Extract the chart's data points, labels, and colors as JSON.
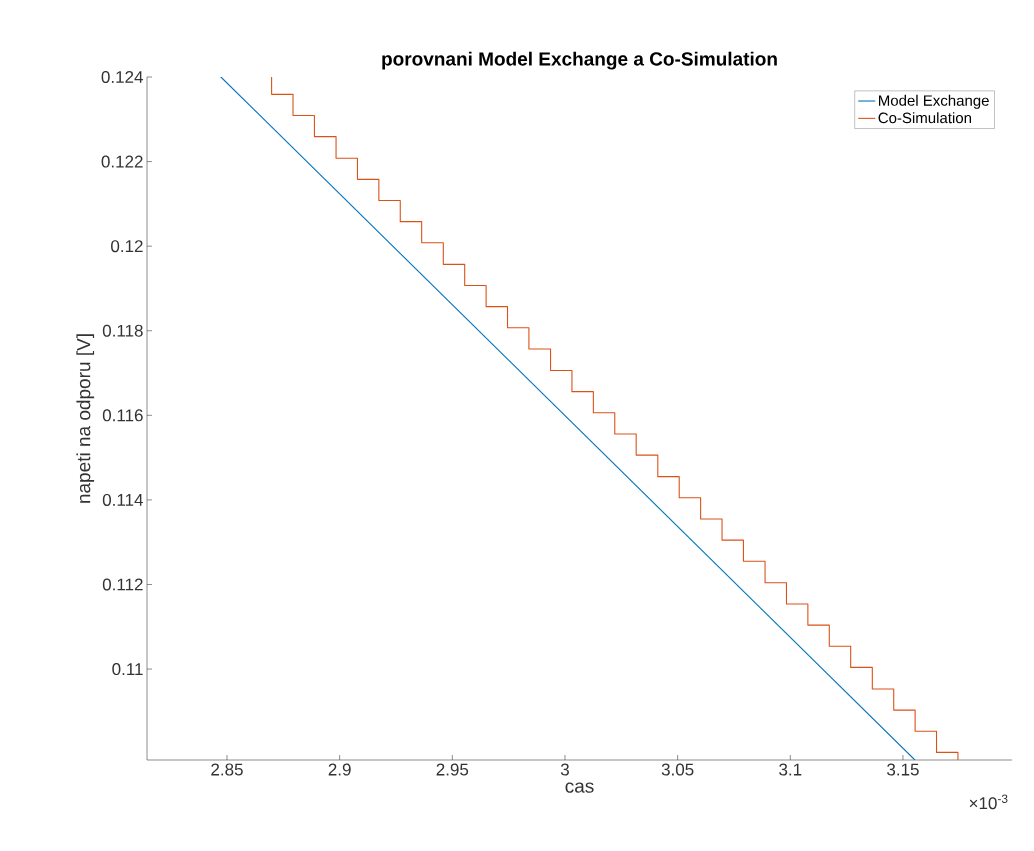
{
  "chart_data": {
    "type": "line",
    "title": "porovnani Model Exchange a Co-Simulation",
    "xlabel": "cas",
    "ylabel": "napeti na odporu [V]",
    "annotations": [
      "×10$^{-3}$"
    ],
    "xlim": [
      2.8145,
      3.1984
    ],
    "ylim": [
      0.10785,
      0.124
    ],
    "xticks": [
      2.85,
      2.9,
      2.95,
      3,
      3.05,
      3.1,
      3.15
    ],
    "yticks": [
      0.11,
      0.112,
      0.114,
      0.116,
      0.118,
      0.12,
      0.122,
      0.124
    ],
    "grid": false,
    "legend": "top right",
    "marker": "none",
    "series": [
      {
        "name": "Model Exchange",
        "color": "#0072bd",
        "x": [
          2.8473,
          3.1553
        ],
        "values": [
          0.124,
          0.10785
        ]
      },
      {
        "name": "Co-Simulation",
        "type": "step",
        "color": "#d95319",
        "x": [
          2.8698,
          2.8698,
          2.8793,
          2.8888,
          2.8984,
          2.9079,
          2.9174,
          2.9269,
          2.9364,
          2.946,
          2.9555,
          2.965,
          2.9745,
          2.984,
          2.9936,
          3.0031,
          3.0126,
          3.0221,
          3.0316,
          3.0412,
          3.0507,
          3.0602,
          3.0697,
          3.0792,
          3.0888,
          3.0983,
          3.1078,
          3.1173,
          3.1268,
          3.1364,
          3.1459,
          3.1554,
          3.1649,
          3.1744
        ],
        "values": [
          0.124,
          0.12359,
          0.12309,
          0.12259,
          0.12208,
          0.12158,
          0.12108,
          0.12058,
          0.12008,
          0.11957,
          0.11907,
          0.11857,
          0.11807,
          0.11757,
          0.11706,
          0.11656,
          0.11606,
          0.11556,
          0.11506,
          0.11455,
          0.11405,
          0.11355,
          0.11305,
          0.11255,
          0.11204,
          0.11154,
          0.11104,
          0.11054,
          0.11004,
          0.10953,
          0.10903,
          0.10853,
          0.10803,
          0.10785
        ]
      }
    ]
  }
}
